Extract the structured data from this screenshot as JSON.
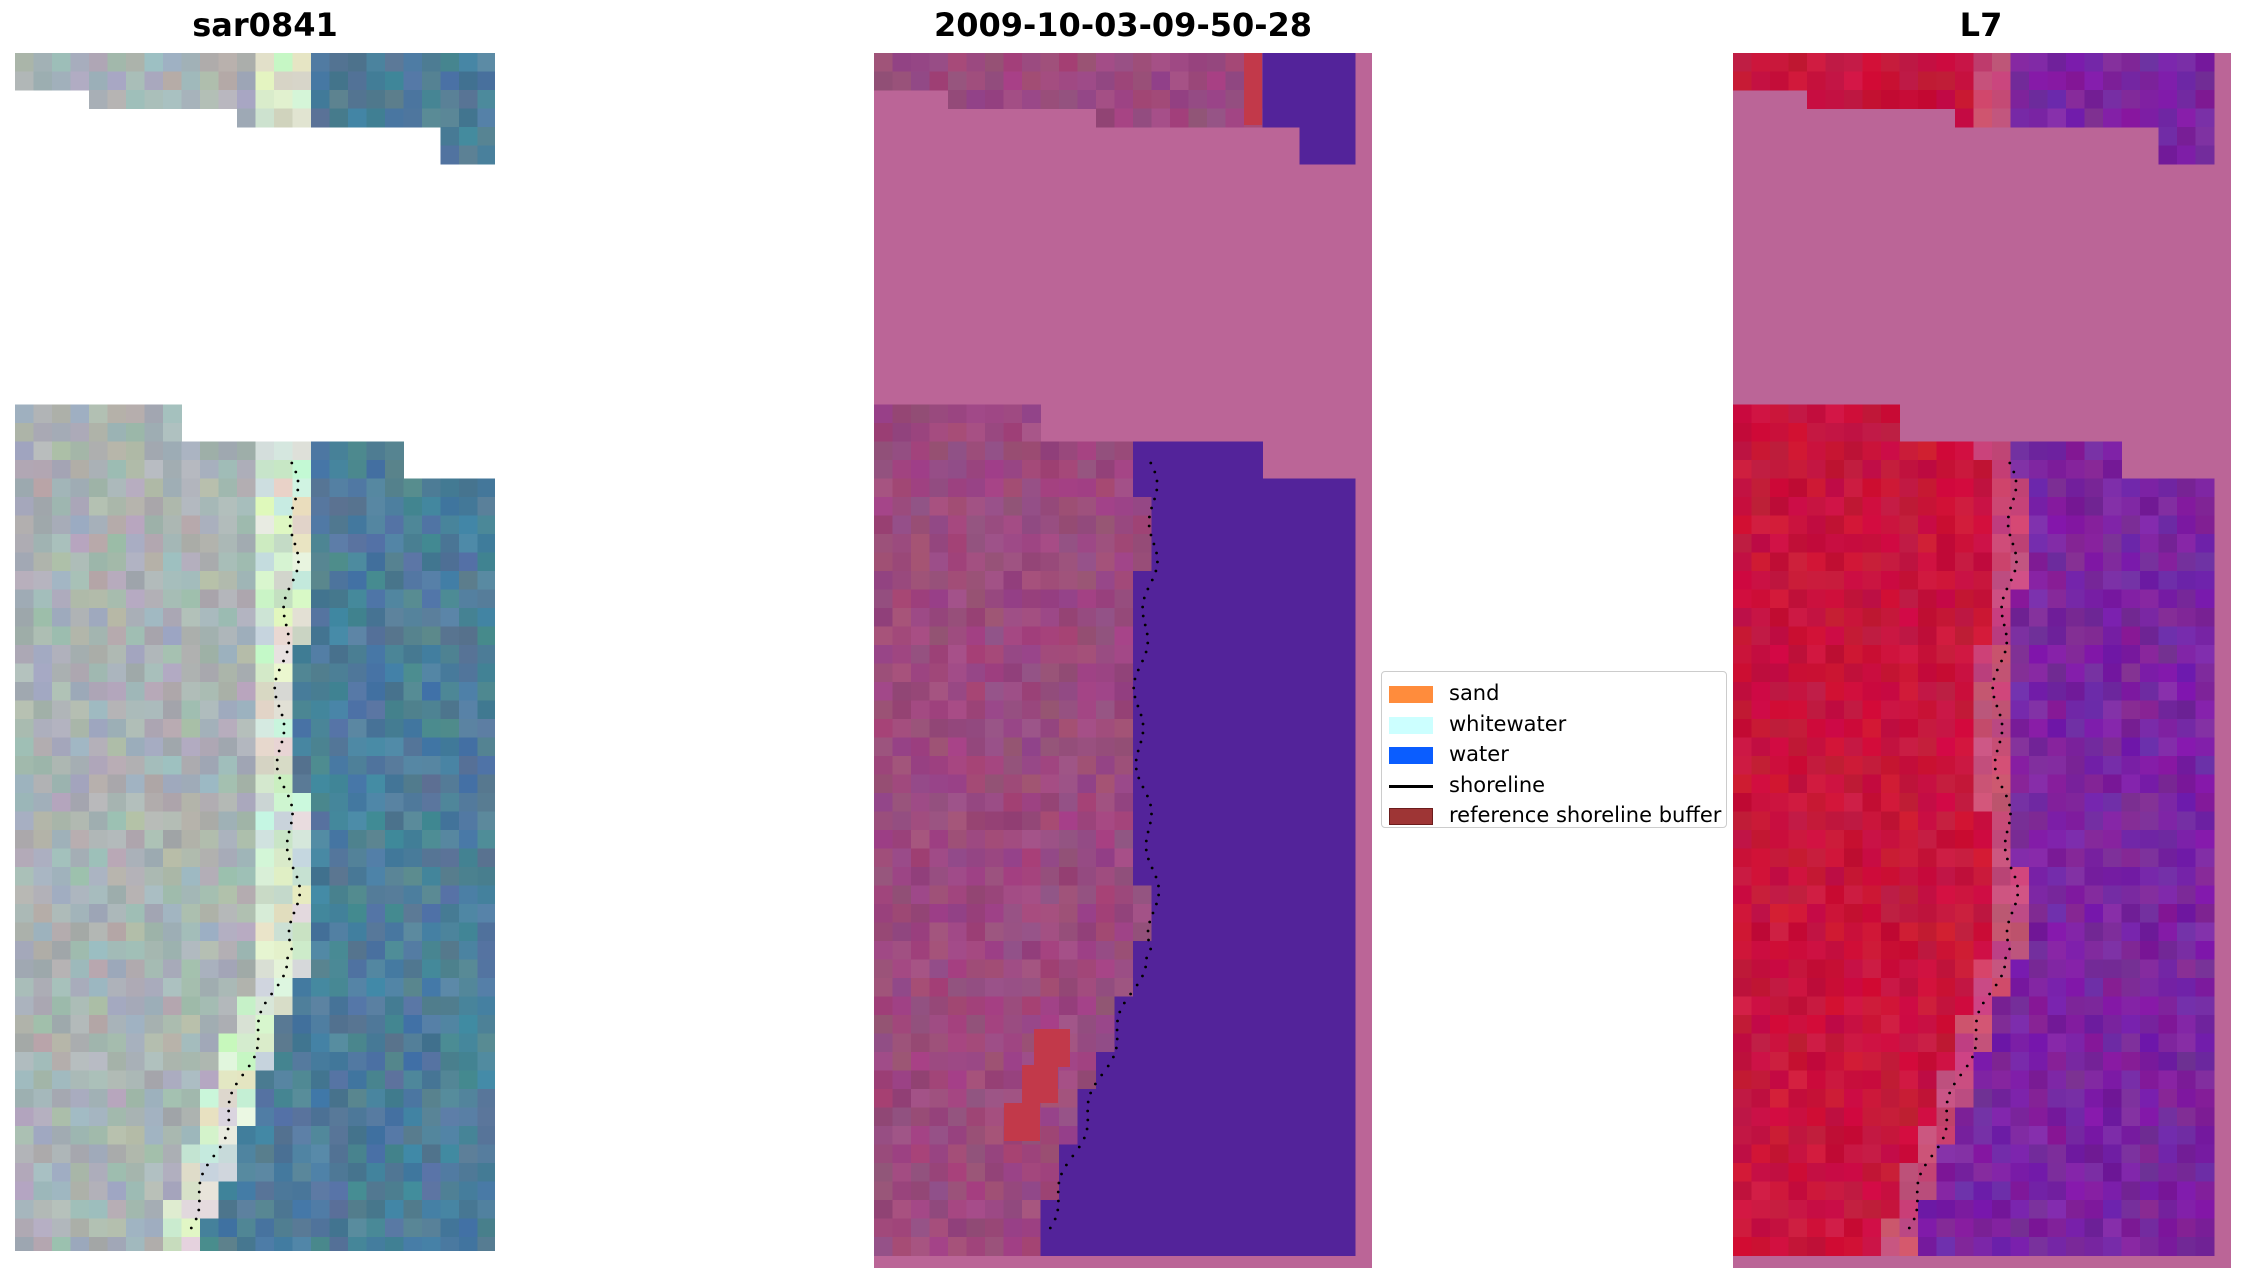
{
  "panels": [
    {
      "title": "sar0841",
      "kind": "rgb"
    },
    {
      "title": "2009-10-03-09-50-28",
      "kind": "classified"
    },
    {
      "title": "L7",
      "kind": "falsecolor"
    }
  ],
  "legend": {
    "items": [
      {
        "label": "sand",
        "color": "#ff8c3c",
        "type": "patch"
      },
      {
        "label": "whitewater",
        "color": "#ccffff",
        "type": "patch"
      },
      {
        "label": "water",
        "color": "#0a5dff",
        "type": "patch"
      },
      {
        "label": "shoreline",
        "color": "#000000",
        "type": "line"
      },
      {
        "label": "reference shoreline buffer",
        "color": "#9e3535",
        "type": "patch"
      }
    ]
  },
  "colors": {
    "rgb_land": "#aab3b5",
    "rgb_beach": "#d7e6cf",
    "rgb_water": "#4e7e9a",
    "classified_land": "#9c4a7e",
    "classified_water": "#53239a",
    "classified_nodata": "#bb6597",
    "classified_buffer": "#c2394a",
    "false_land": "#c8143c",
    "false_water": "#7a24a0",
    "false_nodata": "#bb6597"
  }
}
